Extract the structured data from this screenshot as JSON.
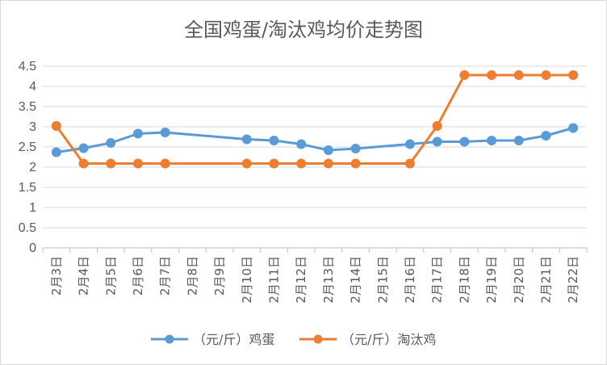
{
  "chart_data": {
    "type": "line",
    "title": "全国鸡蛋/淘汰鸡均价走势图",
    "xlabel": "",
    "ylabel": "",
    "categories": [
      "2月3日",
      "2月4日",
      "2月5日",
      "2月6日",
      "2月7日",
      "2月8日",
      "2月9日",
      "2月10日",
      "2月11日",
      "2月12日",
      "2月13日",
      "2月14日",
      "2月15日",
      "2月16日",
      "2月17日",
      "2月18日",
      "2月19日",
      "2月20日",
      "2月21日",
      "2月22日"
    ],
    "y_ticks": [
      "0",
      "0.5",
      "1",
      "1.5",
      "2",
      "2.5",
      "3",
      "3.5",
      "4",
      "4.5"
    ],
    "ylim": [
      0,
      4.5
    ],
    "grid": true,
    "legend_position": "bottom",
    "series": [
      {
        "name": "（元/斤）鸡蛋",
        "color": "#5b9bd5",
        "values": [
          2.37,
          2.47,
          2.6,
          2.83,
          2.86,
          null,
          null,
          2.69,
          2.66,
          2.57,
          2.42,
          2.46,
          null,
          2.57,
          2.63,
          2.63,
          2.66,
          2.66,
          2.78,
          2.97
        ]
      },
      {
        "name": "（元/斤）淘汰鸡",
        "color": "#ed7d31",
        "values": [
          3.02,
          2.09,
          2.09,
          2.09,
          2.09,
          null,
          null,
          2.09,
          2.09,
          2.09,
          2.09,
          2.09,
          null,
          2.09,
          3.02,
          4.28,
          4.28,
          4.28,
          4.28,
          4.28
        ]
      }
    ]
  }
}
